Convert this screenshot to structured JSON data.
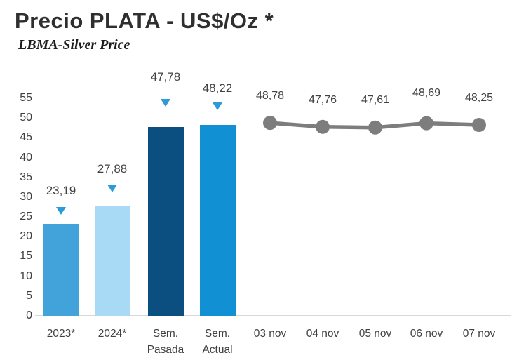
{
  "header": {
    "title": "Precio PLATA - US$/Oz *",
    "subtitle": "LBMA-Silver Price"
  },
  "chart_data": {
    "type": "bar+line combo",
    "title": "Precio PLATA - US$/Oz *",
    "subtitle": "LBMA-Silver Price",
    "ylim": [
      0,
      55
    ],
    "y_ticks": [
      0,
      5,
      10,
      15,
      20,
      25,
      30,
      35,
      40,
      45,
      50,
      55
    ],
    "grid": false,
    "legend": "none",
    "bar_series": {
      "categories": [
        "2023*",
        "2024*",
        "Sem. Pasada",
        "Sem. Actual"
      ],
      "values": [
        23.19,
        27.88,
        47.78,
        48.22
      ],
      "labels": [
        "23,19",
        "27,88",
        "47,78",
        "48,22"
      ],
      "colors": [
        "#42A3DA",
        "#A8DAF5",
        "#0A4F7F",
        "#1191D4"
      ],
      "marker": "triangle-down",
      "marker_color": "#2B9CD8"
    },
    "line_series": {
      "categories": [
        "03 nov",
        "04 nov",
        "05 nov",
        "06 nov",
        "07 nov"
      ],
      "values": [
        48.78,
        47.76,
        47.61,
        48.69,
        48.25
      ],
      "labels": [
        "48,78",
        "47,76",
        "47,61",
        "48,69",
        "48,25"
      ],
      "color": "#7D7D7D"
    },
    "x_axis_labels": [
      {
        "lines": [
          "2023*"
        ]
      },
      {
        "lines": [
          "2024*"
        ]
      },
      {
        "lines": [
          "Sem.",
          "Pasada"
        ]
      },
      {
        "lines": [
          "Sem.",
          "Actual"
        ]
      },
      {
        "lines": [
          "03 nov"
        ]
      },
      {
        "lines": [
          "04 nov"
        ]
      },
      {
        "lines": [
          "05 nov"
        ]
      },
      {
        "lines": [
          "06 nov"
        ]
      },
      {
        "lines": [
          "07 nov"
        ]
      }
    ],
    "colors": {
      "axis_line": "#D8D8D8",
      "tick_text": "#3F3F3F",
      "label_text": "#404040",
      "title_text": "#2F2F2F"
    }
  }
}
